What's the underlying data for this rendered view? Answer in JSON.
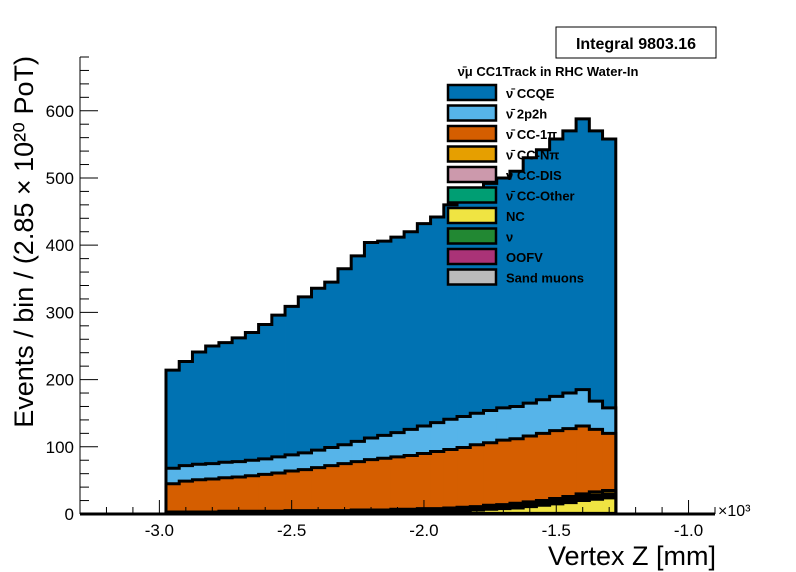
{
  "chart_data": {
    "type": "area",
    "stacked": true,
    "title": "ν̄μ CC1Track in RHC Water-In",
    "xlabel": "Vertex Z [mm]",
    "ylabel": "Events / bin / (2.85 × 10²⁰ PoT)",
    "x_multiplier_label": "×10³",
    "xlim": [
      -3.3,
      -0.9
    ],
    "ylim": [
      0,
      680
    ],
    "x_ticks": [
      "-3.0",
      "-2.5",
      "-2.0",
      "-1.5",
      "-1.0"
    ],
    "x_tick_values": [
      -3.0,
      -2.5,
      -2.0,
      -1.5,
      -1.0
    ],
    "y_ticks": [
      "0",
      "100",
      "200",
      "300",
      "400",
      "500",
      "600"
    ],
    "y_tick_values": [
      0,
      100,
      200,
      300,
      400,
      500,
      600
    ],
    "integral_label": "Integral 9803.16",
    "bin_edges": [
      -2.975,
      -2.925,
      -2.875,
      -2.825,
      -2.775,
      -2.725,
      -2.675,
      -2.625,
      -2.575,
      -2.525,
      -2.475,
      -2.425,
      -2.375,
      -2.325,
      -2.275,
      -2.225,
      -2.175,
      -2.125,
      -2.075,
      -2.025,
      -1.975,
      -1.925,
      -1.875,
      -1.825,
      -1.775,
      -1.725,
      -1.675,
      -1.625,
      -1.575,
      -1.525,
      -1.475,
      -1.425,
      -1.375,
      -1.325,
      -1.275
    ],
    "series": [
      {
        "name": "CCQE",
        "color": "#0072b2",
        "stack_top": [
          214,
          227,
          241,
          250,
          255,
          262,
          270,
          282,
          296,
          309,
          323,
          336,
          345,
          365,
          384,
          404,
          406,
          412,
          420,
          432,
          442,
          460,
          470,
          484,
          492,
          500,
          510,
          530,
          542,
          558,
          570,
          588,
          570,
          558
        ]
      },
      {
        "name": "2p2h",
        "color": "#56b4e9",
        "stack_top": [
          68,
          72,
          74,
          75,
          77,
          78,
          80,
          82,
          85,
          88,
          91,
          95,
          99,
          103,
          108,
          113,
          117,
          121,
          126,
          131,
          136,
          141,
          145,
          150,
          154,
          158,
          160,
          165,
          170,
          175,
          180,
          185,
          168,
          158
        ]
      },
      {
        "name": "CC-1π",
        "color": "#d55e00",
        "stack_top": [
          45,
          49,
          51,
          52,
          54,
          55,
          57,
          59,
          61,
          64,
          66,
          69,
          72,
          75,
          78,
          81,
          83,
          85,
          87,
          90,
          93,
          96,
          99,
          103,
          106,
          110,
          112,
          116,
          120,
          124,
          127,
          131,
          126,
          120
        ]
      },
      {
        "name": "CC-Nπ",
        "color": "#e69f00",
        "stack_top": [
          3,
          3,
          3,
          3,
          4,
          4,
          4,
          4,
          4,
          5,
          5,
          5,
          5,
          5,
          6,
          6,
          6,
          7,
          7,
          8,
          8,
          9,
          10,
          11,
          13,
          14,
          16,
          18,
          20,
          23,
          26,
          30,
          33,
          35
        ]
      },
      {
        "name": "CC-DIS",
        "color": "#cc99ac",
        "stack_top": [
          2,
          2,
          2,
          2,
          3,
          3,
          3,
          3,
          3,
          4,
          4,
          4,
          4,
          4,
          5,
          5,
          5,
          5,
          6,
          6,
          6,
          7,
          8,
          9,
          10,
          11,
          13,
          15,
          17,
          20,
          22,
          26,
          28,
          30
        ]
      },
      {
        "name": "CC-Other",
        "color": "#009e73",
        "stack_top": [
          2,
          2,
          2,
          2,
          2,
          2,
          3,
          3,
          3,
          3,
          3,
          3,
          4,
          4,
          4,
          4,
          4,
          5,
          5,
          5,
          5,
          6,
          7,
          8,
          9,
          10,
          11,
          13,
          15,
          17,
          20,
          23,
          25,
          27
        ]
      },
      {
        "name": "NC",
        "color": "#f0e442",
        "stack_top": [
          1,
          1,
          1,
          1,
          2,
          2,
          2,
          2,
          2,
          2,
          2,
          3,
          3,
          3,
          3,
          3,
          3,
          4,
          4,
          4,
          4,
          5,
          5,
          6,
          7,
          8,
          9,
          11,
          13,
          15,
          17,
          20,
          22,
          24
        ]
      },
      {
        "name": "ν",
        "color": "#228833",
        "stack_top": [
          1,
          1,
          1,
          1,
          1,
          1,
          1,
          1,
          1,
          1,
          1,
          1,
          1,
          1,
          1,
          1,
          1,
          1,
          1,
          1,
          1,
          1,
          1,
          1,
          1,
          1,
          1,
          1,
          1,
          1,
          1,
          1,
          1,
          1
        ]
      },
      {
        "name": "OOFV",
        "color": "#aa3377",
        "stack_top": [
          0,
          0,
          0,
          0,
          0,
          0,
          0,
          0,
          0,
          0,
          0,
          0,
          0,
          0,
          0,
          0,
          0,
          0,
          0,
          0,
          0,
          0,
          0,
          0,
          0,
          0,
          0,
          0,
          0,
          0,
          0,
          0,
          0,
          0
        ]
      },
      {
        "name": "Sand muons",
        "color": "#bbbbbb",
        "stack_top": [
          0,
          0,
          0,
          0,
          0,
          0,
          0,
          0,
          0,
          0,
          0,
          0,
          0,
          0,
          0,
          0,
          0,
          0,
          0,
          0,
          0,
          0,
          0,
          0,
          0,
          0,
          0,
          0,
          0,
          0,
          0,
          0,
          0,
          0
        ]
      }
    ],
    "legend": [
      {
        "label": "ν̄ CCQE",
        "color": "#0072b2"
      },
      {
        "label": "ν̄ 2p2h",
        "color": "#56b4e9"
      },
      {
        "label": "ν̄ CC-1π",
        "color": "#d55e00"
      },
      {
        "label": "ν̄ CC-Nπ",
        "color": "#e69f00"
      },
      {
        "label": "ν̄ CC-DIS",
        "color": "#cc99ac"
      },
      {
        "label": "ν̄ CC-Other",
        "color": "#009e73"
      },
      {
        "label": "NC",
        "color": "#f0e442"
      },
      {
        "label": "ν",
        "color": "#228833"
      },
      {
        "label": "OOFV",
        "color": "#aa3377"
      },
      {
        "label": "Sand muons",
        "color": "#bbbbbb"
      }
    ],
    "legend_placement": "top-right",
    "grid": false
  }
}
